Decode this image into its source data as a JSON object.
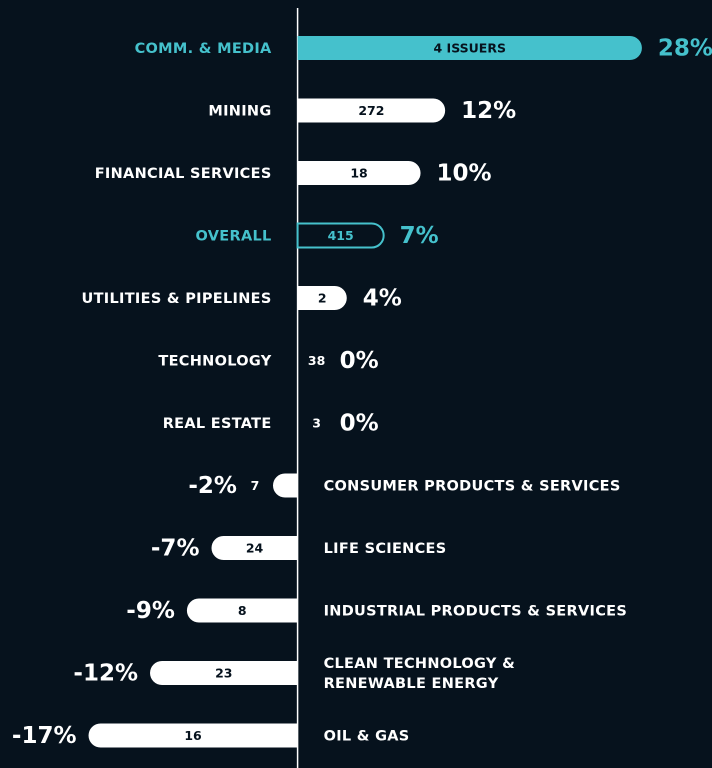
{
  "chart_data": {
    "type": "bar",
    "orientation": "horizontal",
    "categories": [
      "COMM. & MEDIA",
      "MINING",
      "FINANCIAL SERVICES",
      "OVERALL",
      "UTILITIES & PIPELINES",
      "TECHNOLOGY",
      "REAL ESTATE",
      "CONSUMER PRODUCTS & SERVICES",
      "LIFE SCIENCES",
      "INDUSTRIAL PRODUCTS & SERVICES",
      "CLEAN TECHNOLOGY & RENEWABLE ENERGY",
      "OIL & GAS"
    ],
    "values": [
      28,
      12,
      10,
      7,
      4,
      0,
      0,
      -2,
      -7,
      -9,
      -12,
      -17
    ],
    "value_labels": [
      "28%",
      "12%",
      "10%",
      "7%",
      "4%",
      "0%",
      "0%",
      "-2%",
      "-7%",
      "-9%",
      "-12%",
      "-17%"
    ],
    "issuers": [
      4,
      272,
      18,
      415,
      2,
      38,
      3,
      7,
      24,
      8,
      23,
      16
    ],
    "issuer_labels": [
      "4 ISSUERS",
      "272",
      "18",
      "415",
      "2",
      "38",
      "3",
      "7",
      "24",
      "8",
      "23",
      "16"
    ],
    "colors": [
      "#45c1cc",
      "#ffffff",
      "#ffffff",
      "#45c1cc",
      "#ffffff",
      "#ffffff",
      "#ffffff",
      "#ffffff",
      "#ffffff",
      "#ffffff",
      "#ffffff",
      "#ffffff"
    ],
    "bar_styles": [
      "filled",
      "filled",
      "filled",
      "outline",
      "filled",
      "filled",
      "filled",
      "filled",
      "filled",
      "filled",
      "filled",
      "filled"
    ],
    "xlim": [
      -24.2,
      33.7
    ]
  }
}
